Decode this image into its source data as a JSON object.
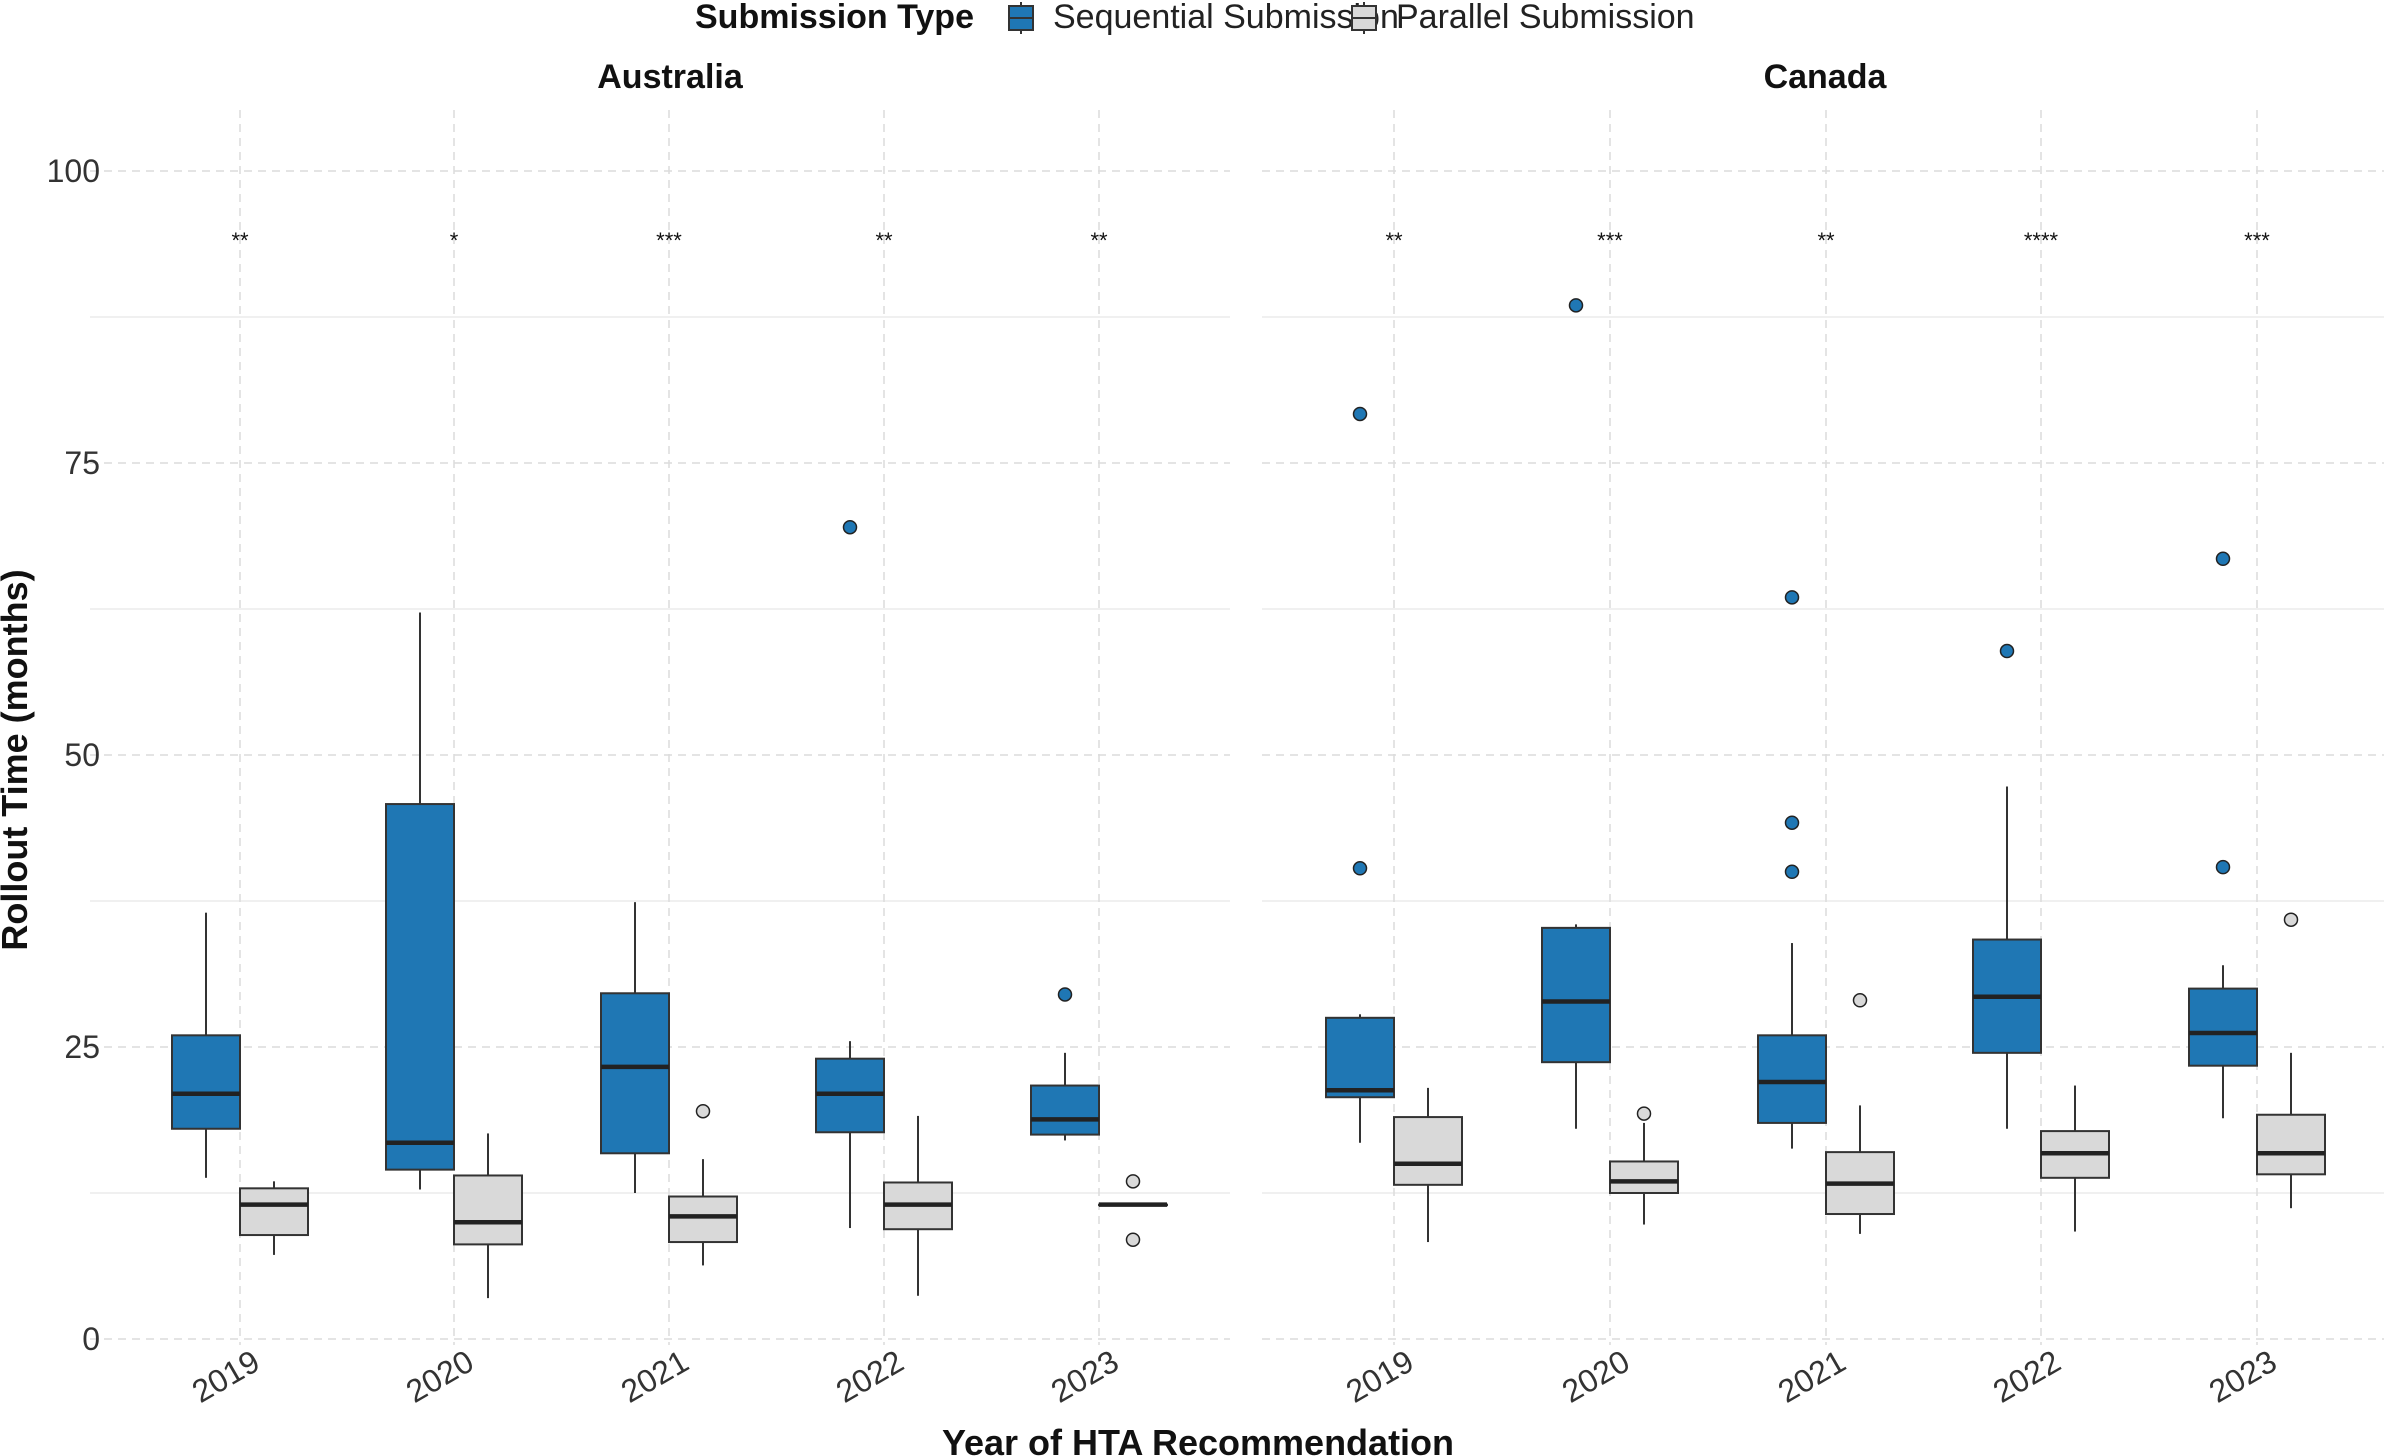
{
  "chart_data": {
    "type": "boxplot",
    "xlabel": "Year of HTA Recommendation",
    "ylabel": "Rollout Time (months)",
    "ylim": [
      -0.5,
      105
    ],
    "yticks": [
      0,
      25,
      50,
      75,
      100
    ],
    "legend": {
      "title": "Submission Type",
      "position": "top-center",
      "entries": [
        {
          "name": "Sequential Submission",
          "color": "#1f77b4"
        },
        {
          "name": "Parallel Submission",
          "color": "#d9d9d9"
        }
      ]
    },
    "categories": [
      "2019",
      "2020",
      "2021",
      "2022",
      "2023"
    ],
    "panels": [
      {
        "title": "Australia",
        "significance": [
          "**",
          "*",
          "***",
          "**",
          "**"
        ],
        "series": [
          {
            "name": "Sequential Submission",
            "boxes": [
              {
                "year": "2019",
                "min": 13.8,
                "q1": 18.0,
                "median": 21.0,
                "q3": 26.0,
                "max": 36.5,
                "outliers": []
              },
              {
                "year": "2020",
                "min": 12.8,
                "q1": 14.5,
                "median": 16.8,
                "q3": 45.8,
                "max": 62.2,
                "outliers": []
              },
              {
                "year": "2021",
                "min": 12.5,
                "q1": 15.9,
                "median": 23.3,
                "q3": 29.6,
                "max": 37.4,
                "outliers": []
              },
              {
                "year": "2022",
                "min": 9.5,
                "q1": 17.7,
                "median": 21.0,
                "q3": 24.0,
                "max": 25.5,
                "outliers": [
                  69.5
                ]
              },
              {
                "year": "2023",
                "min": 17.0,
                "q1": 17.5,
                "median": 18.8,
                "q3": 21.7,
                "max": 24.5,
                "outliers": [
                  29.5
                ]
              }
            ]
          },
          {
            "name": "Parallel Submission",
            "boxes": [
              {
                "year": "2019",
                "min": 7.2,
                "q1": 8.9,
                "median": 11.5,
                "q3": 12.9,
                "max": 13.5,
                "outliers": []
              },
              {
                "year": "2020",
                "min": 3.5,
                "q1": 8.1,
                "median": 10.0,
                "q3": 14.0,
                "max": 17.6,
                "outliers": []
              },
              {
                "year": "2021",
                "min": 6.3,
                "q1": 8.3,
                "median": 10.5,
                "q3": 12.2,
                "max": 15.4,
                "outliers": [
                  19.5
                ]
              },
              {
                "year": "2022",
                "min": 3.7,
                "q1": 9.4,
                "median": 11.5,
                "q3": 13.4,
                "max": 19.1,
                "outliers": []
              },
              {
                "year": "2023",
                "min": 11.5,
                "q1": 11.5,
                "median": 11.5,
                "q3": 11.5,
                "max": 11.5,
                "outliers": [
                  13.5,
                  8.5
                ]
              }
            ]
          }
        ]
      },
      {
        "title": "Canada",
        "significance": [
          "**",
          "***",
          "**",
          "****",
          "***"
        ],
        "series": [
          {
            "name": "Sequential Submission",
            "boxes": [
              {
                "year": "2019",
                "min": 16.8,
                "q1": 20.7,
                "median": 21.3,
                "q3": 27.5,
                "max": 27.8,
                "outliers": [
                  79.2,
                  40.3
                ]
              },
              {
                "year": "2020",
                "min": 18.0,
                "q1": 23.7,
                "median": 28.9,
                "q3": 35.2,
                "max": 35.5,
                "outliers": [
                  88.5
                ]
              },
              {
                "year": "2021",
                "min": 16.3,
                "q1": 18.5,
                "median": 22.0,
                "q3": 26.0,
                "max": 33.9,
                "outliers": [
                  63.5,
                  44.2,
                  40.0
                ]
              },
              {
                "year": "2022",
                "min": 18.0,
                "q1": 24.5,
                "median": 29.3,
                "q3": 34.2,
                "max": 47.3,
                "outliers": [
                  58.9
                ]
              },
              {
                "year": "2023",
                "min": 18.9,
                "q1": 23.4,
                "median": 26.2,
                "q3": 30.0,
                "max": 32.0,
                "outliers": [
                  66.8,
                  40.4
                ]
              }
            ]
          },
          {
            "name": "Parallel Submission",
            "boxes": [
              {
                "year": "2019",
                "min": 8.3,
                "q1": 13.2,
                "median": 15.0,
                "q3": 19.0,
                "max": 21.5,
                "outliers": []
              },
              {
                "year": "2020",
                "min": 9.8,
                "q1": 12.5,
                "median": 13.5,
                "q3": 15.2,
                "max": 18.5,
                "outliers": [
                  19.3
                ]
              },
              {
                "year": "2021",
                "min": 9.0,
                "q1": 10.7,
                "median": 13.3,
                "q3": 16.0,
                "max": 20.0,
                "outliers": [
                  29.0
                ]
              },
              {
                "year": "2022",
                "min": 9.2,
                "q1": 13.8,
                "median": 15.9,
                "q3": 17.8,
                "max": 21.7,
                "outliers": []
              },
              {
                "year": "2023",
                "min": 11.2,
                "q1": 14.1,
                "median": 15.9,
                "q3": 19.2,
                "max": 24.5,
                "outliers": [
                  35.9
                ]
              }
            ]
          }
        ]
      }
    ]
  }
}
